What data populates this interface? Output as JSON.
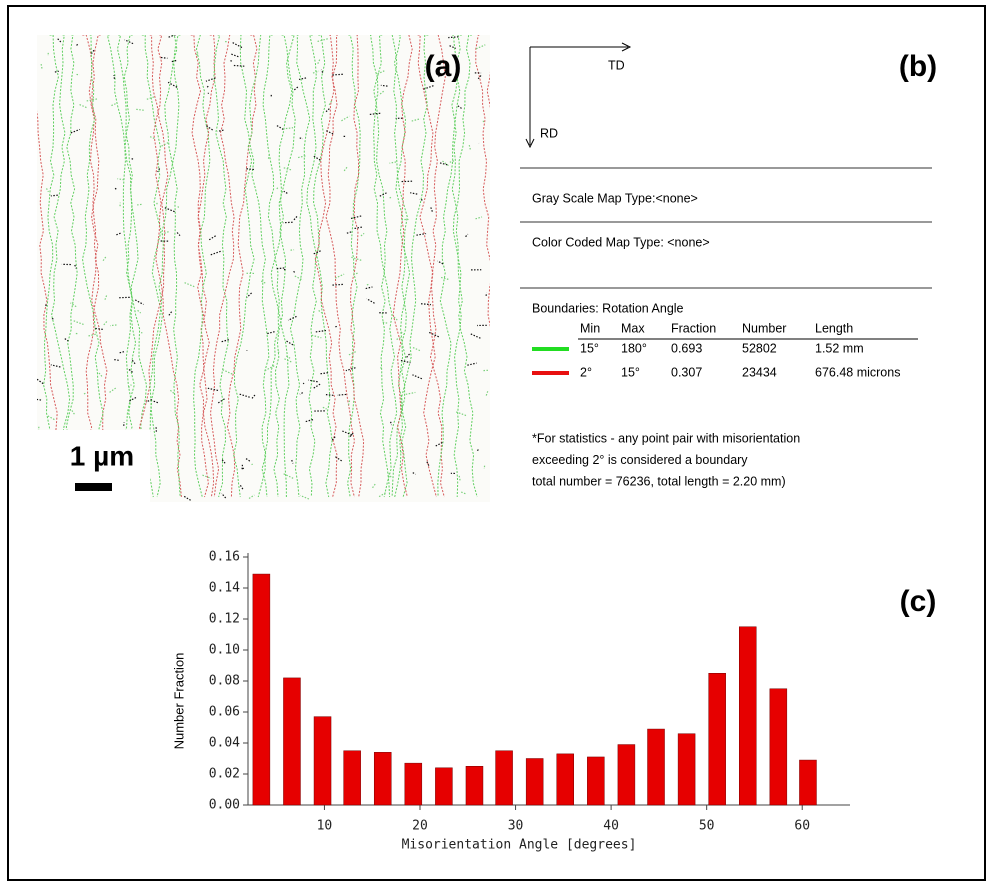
{
  "panels": {
    "a": "(a)",
    "b": "(b)",
    "c": "(c)"
  },
  "map": {
    "scale_label": "1 µm"
  },
  "info": {
    "axes": {
      "horizontal": "TD",
      "vertical": "RD"
    },
    "gray_scale": "Gray Scale Map Type:<none>",
    "color_coded": "Color Coded Map Type: <none>",
    "boundaries_title": "Boundaries: Rotation Angle",
    "table": {
      "columns": [
        "Min",
        "Max",
        "Fraction",
        "Number",
        "Length"
      ],
      "rows": [
        {
          "color": "#22dd22",
          "cells": [
            "15°",
            "180°",
            "0.693",
            "52802",
            "1.52 mm"
          ]
        },
        {
          "color": "#e81010",
          "cells": [
            "2°",
            "15°",
            "0.307",
            "23434",
            "676.48 microns"
          ]
        }
      ]
    },
    "notes": [
      "*For statistics - any point pair with misorientation",
      "exceeding 2° is considered a boundary",
      "total number = 76236, total length = 2.20 mm)"
    ]
  },
  "chart_data": {
    "type": "bar",
    "xlabel": "Misorientation Angle [degrees]",
    "ylabel": "Number Fraction",
    "x": [
      3.4,
      6.6,
      9.8,
      12.9,
      16.1,
      19.3,
      22.5,
      25.7,
      28.8,
      32.0,
      35.2,
      38.4,
      41.6,
      44.7,
      47.9,
      51.1,
      54.3,
      57.5,
      60.6
    ],
    "values": [
      0.149,
      0.082,
      0.057,
      0.035,
      0.034,
      0.027,
      0.024,
      0.025,
      0.035,
      0.03,
      0.033,
      0.031,
      0.039,
      0.049,
      0.046,
      0.085,
      0.115,
      0.075,
      0.029
    ],
    "color": "#e60000",
    "xlim": [
      2,
      65
    ],
    "ylim": [
      0,
      0.16
    ],
    "xticks": [
      10,
      20,
      30,
      40,
      50,
      60
    ],
    "yticks": [
      {
        "value": 0,
        "label": "0.00"
      },
      0.02,
      0.04,
      0.06,
      0.08,
      {
        "value": 0.1,
        "label": "0.10"
      },
      0.12,
      0.14,
      0.16
    ],
    "grid": false
  }
}
